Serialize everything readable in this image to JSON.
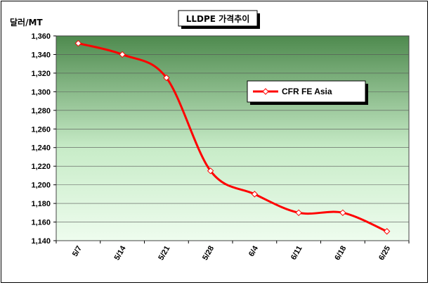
{
  "chart_data": {
    "type": "line",
    "title": "LLDPE 가격추이",
    "ylabel": "달러/MT",
    "xlabel": "",
    "categories": [
      "5/7",
      "5/14",
      "5/21",
      "5/28",
      "6/4",
      "6/11",
      "6/18",
      "6/25"
    ],
    "series": [
      {
        "name": "CFR FE Asia",
        "values": [
          1352,
          1340,
          1315,
          1215,
          1190,
          1170,
          1170,
          1150
        ],
        "color": "#ff0000"
      }
    ],
    "ylim": [
      1140,
      1360
    ],
    "yticks": [
      1140,
      1160,
      1180,
      1200,
      1220,
      1240,
      1260,
      1280,
      1300,
      1320,
      1340,
      1360
    ],
    "ytick_labels": [
      "1,140",
      "1,160",
      "1,180",
      "1,200",
      "1,220",
      "1,240",
      "1,260",
      "1,280",
      "1,300",
      "1,320",
      "1,340",
      "1,360"
    ],
    "grid": true,
    "legend_position": "upper-right",
    "marker": "diamond",
    "smooth": true
  }
}
